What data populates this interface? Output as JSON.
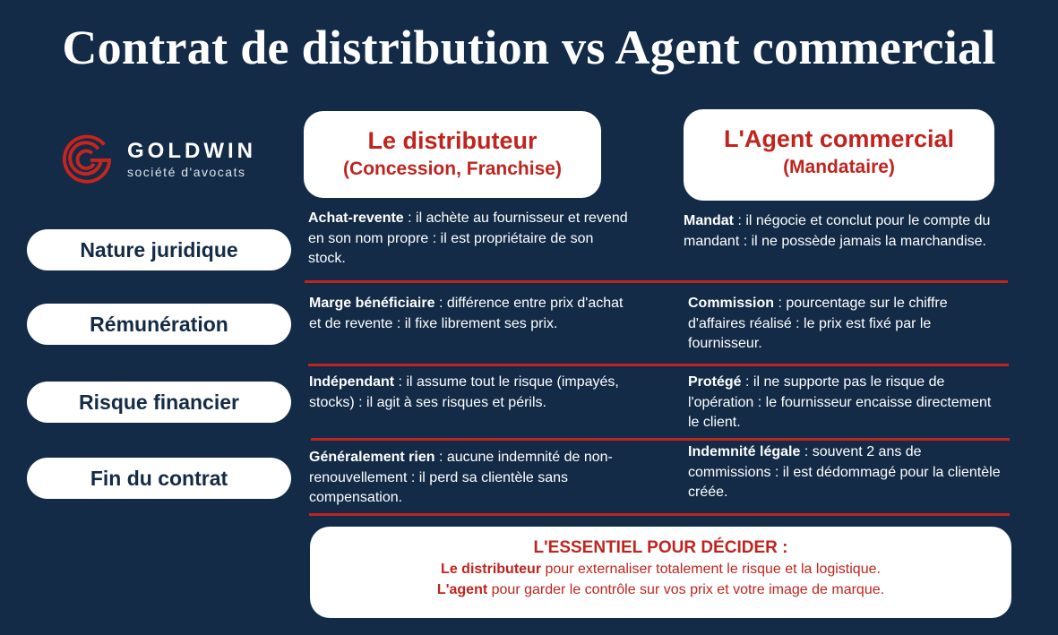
{
  "title": "Contrat de distribution vs Agent commercial",
  "logo": {
    "name": "GOLDWIN",
    "subtitle": "société d'avocats"
  },
  "colors": {
    "background": "#132b47",
    "accent": "#c0241e",
    "card": "#ffffff"
  },
  "columns": [
    {
      "title": "Le distributeur",
      "subtitle": "(Concession, Franchise)"
    },
    {
      "title": "L'Agent commercial",
      "subtitle": "(Mandataire)"
    }
  ],
  "rows": [
    {
      "label": "Nature juridique",
      "distributor": {
        "bold": "Achat-revente",
        "text": " : il achète au fournisseur et revend en son nom propre : il est propriétaire de son stock."
      },
      "agent": {
        "bold": "Mandat",
        "text": " : il négocie et conclut pour le compte du mandant : il ne possède jamais la marchandise."
      }
    },
    {
      "label": "Rémunération",
      "distributor": {
        "bold": "Marge bénéficiaire",
        "text": " : différence entre prix d'achat et de revente : il fixe librement ses prix."
      },
      "agent": {
        "bold": "Commission",
        "text": " : pourcentage sur le chiffre d'affaires réalisé : le prix est fixé par le fournisseur."
      }
    },
    {
      "label": "Risque financier",
      "distributor": {
        "bold": "Indépendant",
        "text": " : il assume tout le risque (impayés, stocks) : il agit à ses risques et périls."
      },
      "agent": {
        "bold": "Protégé",
        "text": " : il ne supporte pas le risque de l'opération : le fournisseur encaisse directement le client."
      }
    },
    {
      "label": "Fin du contrat",
      "distributor": {
        "bold": "Généralement rien",
        "text": " : aucune indemnité de non-renouvellement : il perd sa clientèle sans compensation."
      },
      "agent": {
        "bold": "Indemnité légale",
        "text": " : souvent 2 ans de commissions : il est dédommagé pour la clientèle créée."
      }
    }
  ],
  "footer": {
    "title": "L'ESSENTIEL POUR DÉCIDER :",
    "lines": [
      {
        "bold": "Le distributeur",
        "text": " pour externaliser totalement le risque et la logistique."
      },
      {
        "bold": "L'agent",
        "text": " pour garder le contrôle sur vos prix et votre image de marque."
      }
    ]
  }
}
